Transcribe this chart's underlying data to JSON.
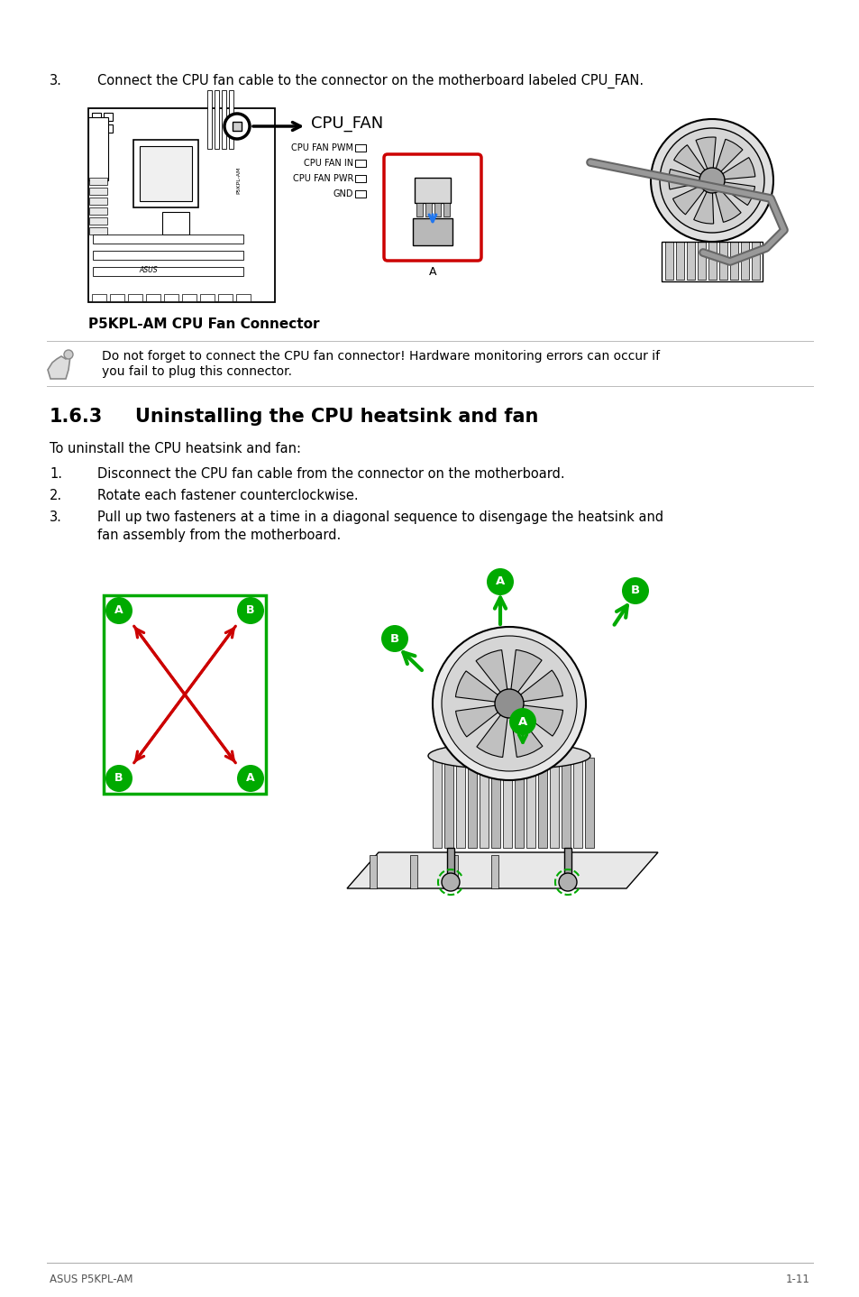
{
  "bg_color": "#ffffff",
  "text_color": "#000000",
  "red_color": "#cc0000",
  "green_color": "#00aa00",
  "footer_left": "ASUS P5KPL-AM",
  "footer_right": "1-11",
  "step3_top": "Connect the CPU fan cable to the connector on the motherboard labeled CPU_FAN.",
  "cpu_fan_label": "CPU_FAN",
  "connector_labels": [
    "CPU FAN PWM",
    "CPU FAN IN",
    "CPU FAN PWR",
    "GND"
  ],
  "motherboard_caption": "P5KPL-AM CPU Fan Connector",
  "note_line1": "Do not forget to connect the CPU fan connector! Hardware monitoring errors can occur if",
  "note_line2": "you fail to plug this connector.",
  "section_title_num": "1.6.3",
  "section_title_text": "Uninstalling the CPU heatsink and fan",
  "uninstall_intro": "To uninstall the CPU heatsink and fan:",
  "step1": "Disconnect the CPU fan cable from the connector on the motherboard.",
  "step2": "Rotate each fastener counterclockwise.",
  "step3b_line1": "Pull up two fasteners at a time in a diagonal sequence to disengage the heatsink and",
  "step3b_line2": "fan assembly from the motherboard."
}
